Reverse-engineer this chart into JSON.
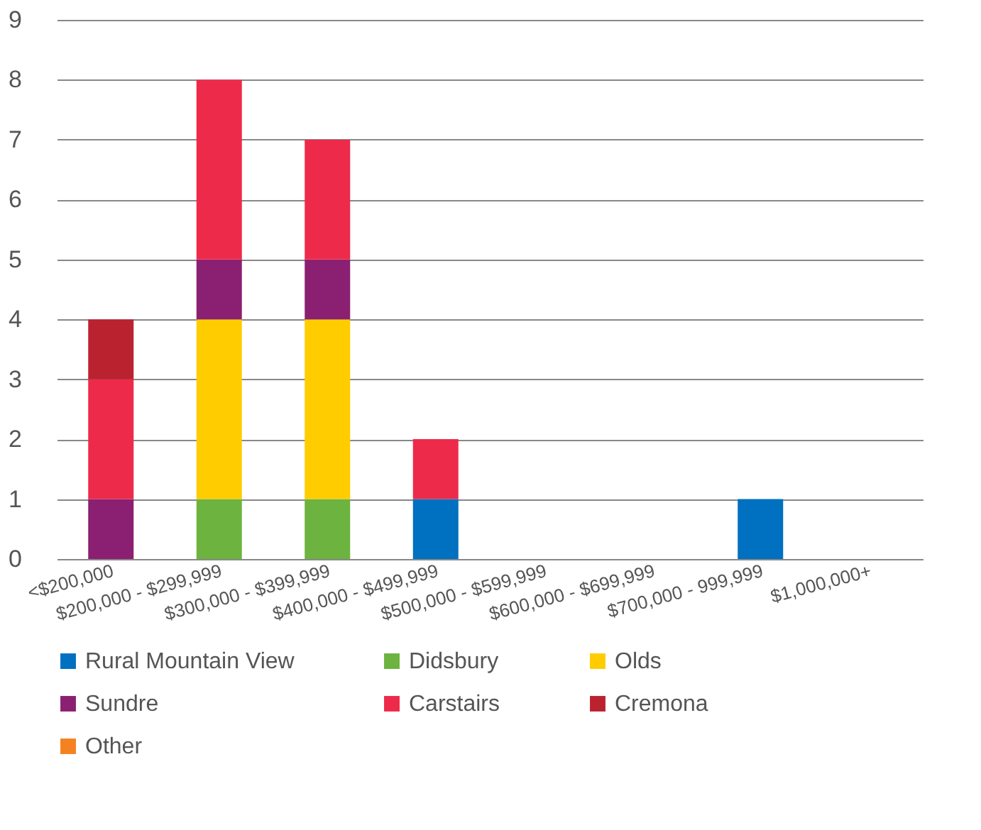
{
  "chart_data": {
    "type": "bar",
    "stacked": true,
    "categories": [
      "<$200,000",
      "$200,000 - $299,999",
      "$300,000 - $399,999",
      "$400,000 - $499,999",
      "$500,000 - $599,999",
      "$600,000 - $699,999",
      "$700,000 - 999,999",
      "$1,000,000+"
    ],
    "series": [
      {
        "name": "Rural Mountain View",
        "color": "#0070c0",
        "values": [
          null,
          null,
          null,
          1,
          null,
          null,
          1,
          null
        ]
      },
      {
        "name": "Didsbury",
        "color": "#6db33f",
        "values": [
          null,
          1,
          1,
          null,
          null,
          null,
          null,
          null
        ]
      },
      {
        "name": "Olds",
        "color": "#ffcc00",
        "values": [
          null,
          3,
          3,
          null,
          null,
          null,
          null,
          null
        ]
      },
      {
        "name": "Sundre",
        "color": "#8b2072",
        "values": [
          1,
          1,
          1,
          null,
          null,
          null,
          null,
          null
        ]
      },
      {
        "name": "Carstairs",
        "color": "#ee2a4a",
        "values": [
          2,
          3,
          2,
          1,
          null,
          null,
          null,
          null
        ]
      },
      {
        "name": "Cremona",
        "color": "#bb2230",
        "values": [
          1,
          null,
          null,
          null,
          null,
          null,
          null,
          null
        ]
      },
      {
        "name": "Other",
        "color": "#f58220",
        "values": [
          null,
          null,
          null,
          null,
          null,
          null,
          null,
          null
        ]
      }
    ],
    "ylim": [
      0,
      9
    ],
    "yticks": [
      0,
      1,
      2,
      3,
      4,
      5,
      6,
      7,
      8,
      9
    ],
    "grid": "y",
    "legend": "bottom"
  }
}
